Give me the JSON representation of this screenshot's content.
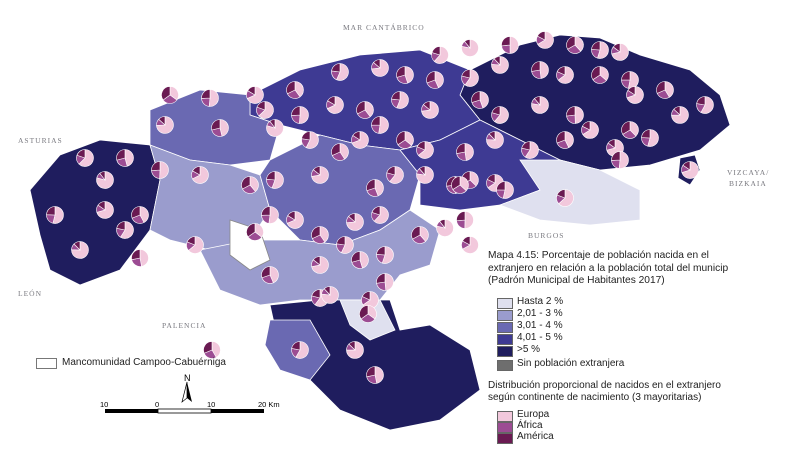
{
  "labels": {
    "north": "MAR CANTÁBRICO",
    "west": "ASTURIAS",
    "east": "VIZCAYA/\nBIZKAIA",
    "east_1": "VIZCAYA/",
    "east_2": "BIZKAIA",
    "south_east": "BURGOS",
    "south_west": "LEÓN",
    "south": "PALENCIA"
  },
  "caption": {
    "line1": "Mapa 4.15: Porcentaje de población nacida en el",
    "line2": "extranjero en relación a la población total del municip",
    "line3": "(Padrón Municipal de Habitantes 2017)"
  },
  "legend": {
    "classes": [
      {
        "label": "Hasta 2 %",
        "color": "#dfe0ef"
      },
      {
        "label": "2,01 - 3 %",
        "color": "#9a9ccd"
      },
      {
        "label": "3,01 - 4 %",
        "color": "#6a69b2"
      },
      {
        "label": "4,01 - 5 %",
        "color": "#3e3a93"
      },
      {
        "label": ">5 %",
        "color": "#1f1d5e"
      }
    ],
    "no_foreign": {
      "label": "Sin población extranjera",
      "color": "#6e6e6e"
    },
    "mancomunidad": "Mancomunidad Campoo-Cabuérniga"
  },
  "pies_legend": {
    "title1": "Distribución proporcional de  nacidos en el extranjero",
    "title2": "según continente de nacimiento (3 mayoritarias)",
    "items": [
      {
        "label": "Europa",
        "color": "#f2c8dc"
      },
      {
        "label": "África",
        "color": "#9c4c93"
      },
      {
        "label": "América",
        "color": "#6a1a52"
      }
    ]
  },
  "scale": {
    "ticks": [
      "10",
      "0",
      "10",
      "20 Km"
    ]
  },
  "north_arrow": "N"
}
